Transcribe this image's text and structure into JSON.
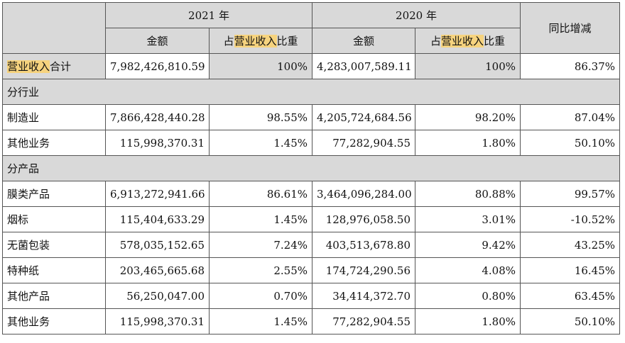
{
  "header": {
    "year_2021": "2021 年",
    "year_2020": "2020 年",
    "change": "同比增减",
    "amount": "金额",
    "share_prefix": "占",
    "share_highlight": "营业收入",
    "share_suffix": "比重"
  },
  "total_row": {
    "label_highlight": "营业收入",
    "label_suffix": "合计",
    "amount_2021": "7,982,426,810.59",
    "share_2021": "100%",
    "amount_2020": "4,283,007,589.11",
    "share_2020": "100%",
    "change": "86.37%"
  },
  "sections": [
    {
      "title": "分行业",
      "rows": [
        {
          "label": "制造业",
          "amount_2021": "7,866,428,440.28",
          "share_2021": "98.55%",
          "amount_2020": "4,205,724,684.56",
          "share_2020": "98.20%",
          "change": "87.04%"
        },
        {
          "label": "其他业务",
          "amount_2021": "115,998,370.31",
          "share_2021": "1.45%",
          "amount_2020": "77,282,904.55",
          "share_2020": "1.80%",
          "change": "50.10%"
        }
      ]
    },
    {
      "title": "分产品",
      "rows": [
        {
          "label": "膜类产品",
          "amount_2021": "6,913,272,941.66",
          "share_2021": "86.61%",
          "amount_2020": "3,464,096,284.00",
          "share_2020": "80.88%",
          "change": "99.57%"
        },
        {
          "label": "烟标",
          "amount_2021": "115,404,633.29",
          "share_2021": "1.45%",
          "amount_2020": "128,976,058.50",
          "share_2020": "3.01%",
          "change": "-10.52%"
        },
        {
          "label": "无菌包装",
          "amount_2021": "578,035,152.65",
          "share_2021": "7.24%",
          "amount_2020": "403,513,678.80",
          "share_2020": "9.42%",
          "change": "43.25%"
        },
        {
          "label": "特种纸",
          "amount_2021": "203,465,665.68",
          "share_2021": "2.55%",
          "amount_2020": "174,724,290.56",
          "share_2020": "4.08%",
          "change": "16.45%"
        },
        {
          "label": "其他产品",
          "amount_2021": "56,250,047.00",
          "share_2021": "0.70%",
          "amount_2020": "34,414,372.70",
          "share_2020": "0.80%",
          "change": "63.45%"
        },
        {
          "label": "其他业务",
          "amount_2021": "115,998,370.31",
          "share_2021": "1.45%",
          "amount_2020": "77,282,904.55",
          "share_2020": "1.80%",
          "change": "50.10%"
        }
      ]
    }
  ]
}
